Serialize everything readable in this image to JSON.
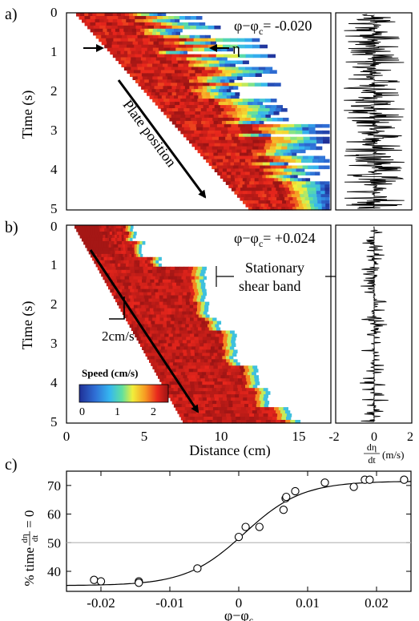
{
  "colors": {
    "speed_scale": [
      "#1f2f96",
      "#2f6fd6",
      "#35b6f0",
      "#5fe0a0",
      "#f2ee3a",
      "#f79a22",
      "#e8261c",
      "#9a1414"
    ],
    "white_band": "#ffffff",
    "axis": "#000000",
    "reference_line": "#bdbdbd"
  },
  "panel_a": {
    "panel_label": "a)",
    "phi_text": "φ−φ",
    "phi_sub": "c",
    "phi_value": "= -0.020",
    "eta_label": "η",
    "arrow_label": "Plate position",
    "ylabel": "Time (s)",
    "yticks": [
      "0",
      "1",
      "2",
      "3",
      "4",
      "5"
    ],
    "time_range": [
      0,
      5
    ],
    "distance_range": [
      0,
      16
    ]
  },
  "panel_b": {
    "panel_label": "b)",
    "phi_text": "φ−φ",
    "phi_sub": "c",
    "phi_value": "= +0.024",
    "shear_line1": "Stationary",
    "shear_line2": "shear band",
    "scale_label": "2cm/s",
    "colorbar_title": "Speed (cm/s)",
    "colorbar_ticks": [
      "0",
      "1",
      "2"
    ],
    "ylabel": "Time (s)",
    "yticks": [
      "0",
      "1",
      "2",
      "3",
      "4",
      "5"
    ],
    "xlabel": "Distance (cm)",
    "xticks": [
      "0",
      "5",
      "10",
      "15"
    ]
  },
  "side_panel": {
    "xticks": [
      "-2",
      "0",
      "2"
    ],
    "xlabel_num": "dη",
    "xlabel_den": "dt",
    "xlabel_unit": "(m/s)"
  },
  "panel_c": {
    "panel_label": "c)",
    "ylabel_pre": "% time",
    "ylabel_num": "dη",
    "ylabel_den": "dt",
    "ylabel_post": "= 0",
    "xlabel": "φ−φ",
    "xlabel_sub": "c",
    "yticks": [
      "40",
      "50",
      "60",
      "70"
    ],
    "xticks": [
      "-0.02",
      "-0.01",
      "0",
      "0.01",
      "0.02"
    ]
  },
  "chart_data": [
    {
      "type": "heatmap",
      "panel": "a",
      "xlabel": "",
      "ylabel": "Time (s)",
      "xlim": [
        0,
        16
      ],
      "ylim": [
        5,
        0
      ],
      "notes": "speed (cm/s) vs distance and time, fluctuating shear band of width η",
      "colorbar": {
        "title": "Speed (cm/s)",
        "range": [
          0,
          2.3
        ]
      }
    },
    {
      "type": "heatmap",
      "panel": "b",
      "xlabel": "Distance (cm)",
      "ylabel": "Time (s)",
      "xlim": [
        0,
        16
      ],
      "ylim": [
        5,
        0
      ],
      "band_edge_cm": [
        [
          0.0,
          4.1
        ],
        [
          0.4,
          4.6
        ],
        [
          0.8,
          5.6
        ],
        [
          1.0,
          8.4
        ],
        [
          1.9,
          8.6
        ],
        [
          2.3,
          9.2
        ],
        [
          2.6,
          9.4
        ],
        [
          2.7,
          10.2
        ],
        [
          3.4,
          10.4
        ],
        [
          3.6,
          11.6
        ],
        [
          4.1,
          12.2
        ],
        [
          4.6,
          13.5
        ],
        [
          5.0,
          14.2
        ]
      ],
      "colorbar": {
        "title": "Speed (cm/s)",
        "range": [
          0,
          2.3
        ],
        "ticks": [
          0,
          1,
          2
        ]
      }
    },
    {
      "type": "line",
      "panel": "side",
      "xlabel": "dη/dt (m/s)",
      "xlim": [
        -2,
        2
      ],
      "ylim": [
        5,
        0
      ],
      "series": [
        {
          "values": []
        }
      ]
    },
    {
      "type": "scatter",
      "panel": "c",
      "xlabel": "φ−φc",
      "ylabel": "% time dη/dt = 0",
      "xlim": [
        -0.025,
        0.025
      ],
      "ylim": [
        33,
        75
      ],
      "reference_line_y": 50,
      "points": [
        {
          "x": -0.021,
          "y": 37
        },
        {
          "x": -0.02,
          "y": 36.5
        },
        {
          "x": -0.0145,
          "y": 36.5
        },
        {
          "x": -0.0145,
          "y": 36
        },
        {
          "x": -0.006,
          "y": 41
        },
        {
          "x": 0.0,
          "y": 52
        },
        {
          "x": 0.001,
          "y": 55.5
        },
        {
          "x": 0.003,
          "y": 55.5
        },
        {
          "x": 0.0065,
          "y": 61.5
        },
        {
          "x": 0.0068,
          "y": 65.5
        },
        {
          "x": 0.0069,
          "y": 66
        },
        {
          "x": 0.0082,
          "y": 68
        },
        {
          "x": 0.0125,
          "y": 71
        },
        {
          "x": 0.0167,
          "y": 69.5
        },
        {
          "x": 0.0183,
          "y": 72
        },
        {
          "x": 0.019,
          "y": 72
        },
        {
          "x": 0.024,
          "y": 72
        }
      ],
      "fit": {
        "type": "sigmoid",
        "low": 35,
        "high": 71.5,
        "center": 0.0008,
        "width": 0.0042
      }
    }
  ]
}
